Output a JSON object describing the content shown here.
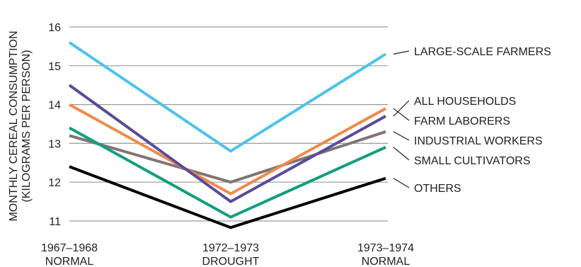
{
  "chart_data": {
    "type": "line",
    "ylabel_lines": [
      "MONTHLY CEREAL CONSUMPTION",
      "(KILOGRAMS PER PERSON)"
    ],
    "ylim": [
      11,
      16
    ],
    "yticks": [
      11,
      12,
      13,
      14,
      15,
      16
    ],
    "categories": [
      {
        "line1": "1967–1968",
        "line2": "NORMAL"
      },
      {
        "line1": "1972–1973",
        "line2": "DROUGHT"
      },
      {
        "line1": "1973–1974",
        "line2": "NORMAL"
      }
    ],
    "grid": true,
    "legend": "direct-labels-right",
    "series": [
      {
        "name": "LARGE-SCALE FARMERS",
        "color": "#4fc3e8",
        "values": [
          15.6,
          12.8,
          15.3
        ]
      },
      {
        "name": "ALL HOUSEHOLDS",
        "color": "#5b4a98",
        "values": [
          14.5,
          11.5,
          13.7
        ]
      },
      {
        "name": "FARM LABORERS",
        "color": "#f08a4b",
        "values": [
          14.0,
          11.7,
          13.9
        ]
      },
      {
        "name": "INDUSTRIAL WORKERS",
        "color": "#807571",
        "values": [
          13.2,
          12.0,
          13.3
        ]
      },
      {
        "name": "SMALL CULTIVATORS",
        "color": "#139e7e",
        "values": [
          13.4,
          11.1,
          12.9
        ]
      },
      {
        "name": "OTHERS",
        "color": "#000000",
        "values": [
          12.4,
          10.83,
          12.1
        ]
      }
    ]
  }
}
